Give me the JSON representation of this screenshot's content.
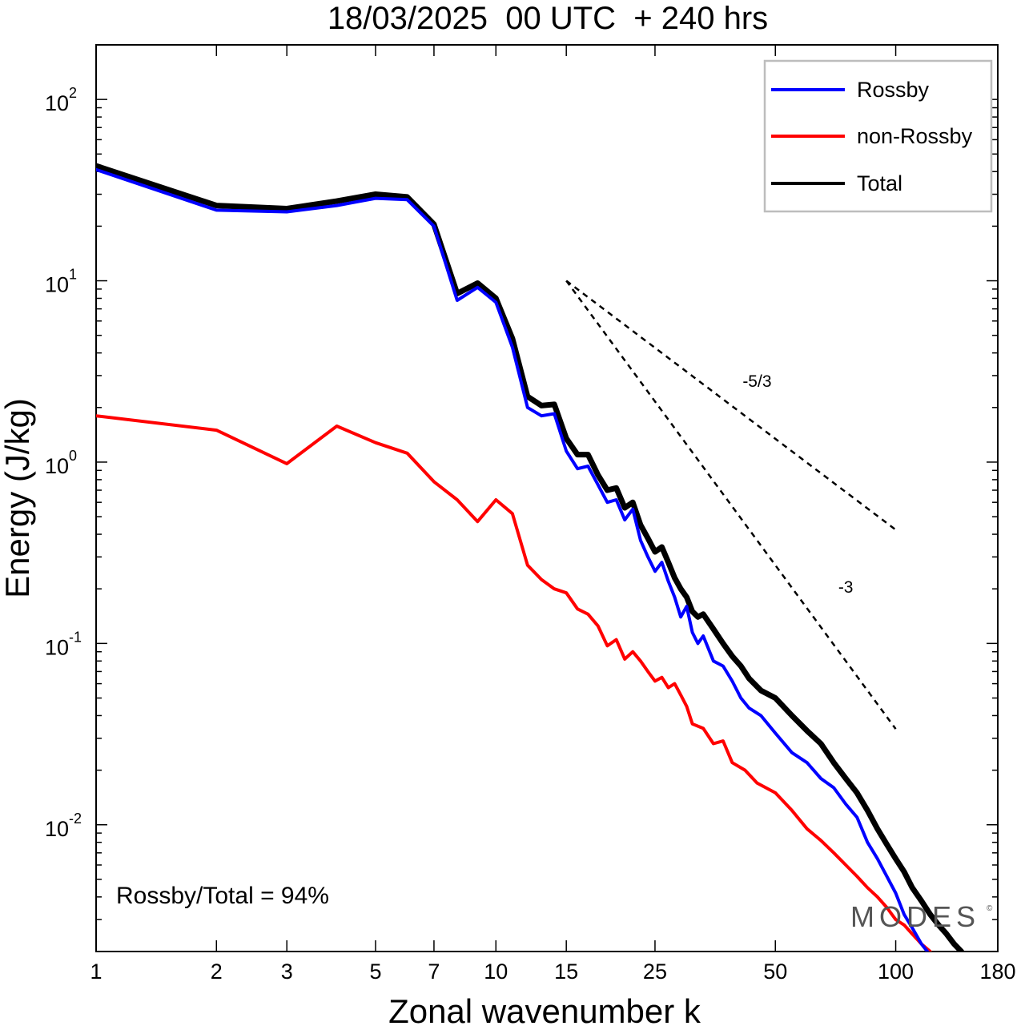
{
  "chart_data": {
    "type": "line",
    "title": "18/03/2025  00 UTC  + 240 hrs",
    "xlabel": "Zonal wavenumber k",
    "ylabel": "Energy (J/kg)",
    "xscale": "log",
    "yscale": "log",
    "xlim": [
      1,
      180
    ],
    "ylim": [
      0.002,
      200
    ],
    "x_ticks": [
      {
        "value": 1,
        "label": "1"
      },
      {
        "value": 2,
        "label": "2"
      },
      {
        "value": 3,
        "label": "3"
      },
      {
        "value": 5,
        "label": "5"
      },
      {
        "value": 7,
        "label": "7"
      },
      {
        "value": 10,
        "label": "10"
      },
      {
        "value": 15,
        "label": "15"
      },
      {
        "value": 25,
        "label": "25"
      },
      {
        "value": 50,
        "label": "50"
      },
      {
        "value": 100,
        "label": "100"
      },
      {
        "value": 180,
        "label": "180"
      }
    ],
    "y_ticks": [
      {
        "value": 100,
        "base": "10",
        "exp": "2"
      },
      {
        "value": 10,
        "base": "10",
        "exp": "1"
      },
      {
        "value": 1,
        "base": "10",
        "exp": "0"
      },
      {
        "value": 0.1,
        "base": "10",
        "exp": "-1"
      },
      {
        "value": 0.01,
        "base": "10",
        "exp": "-2"
      }
    ],
    "legend_position": "top-right",
    "series": [
      {
        "name": "Rossby",
        "color": "#0000ff",
        "points": [
          [
            1,
            41
          ],
          [
            2,
            24.5
          ],
          [
            3,
            24
          ],
          [
            4,
            26
          ],
          [
            5,
            28.5
          ],
          [
            6,
            28
          ],
          [
            7,
            20
          ],
          [
            8,
            7.8
          ],
          [
            9,
            9.2
          ],
          [
            10,
            7.6
          ],
          [
            11,
            4.3
          ],
          [
            12,
            2.0
          ],
          [
            13,
            1.8
          ],
          [
            14,
            1.85
          ],
          [
            15,
            1.15
          ],
          [
            16,
            0.92
          ],
          [
            17,
            0.95
          ],
          [
            18,
            0.75
          ],
          [
            19,
            0.6
          ],
          [
            20,
            0.62
          ],
          [
            21,
            0.48
          ],
          [
            22,
            0.55
          ],
          [
            23,
            0.37
          ],
          [
            24,
            0.3
          ],
          [
            25,
            0.25
          ],
          [
            26,
            0.28
          ],
          [
            27,
            0.22
          ],
          [
            28,
            0.18
          ],
          [
            29,
            0.14
          ],
          [
            30,
            0.16
          ],
          [
            31,
            0.115
          ],
          [
            32,
            0.1
          ],
          [
            33,
            0.11
          ],
          [
            35,
            0.08
          ],
          [
            37,
            0.075
          ],
          [
            39,
            0.062
          ],
          [
            41,
            0.05
          ],
          [
            43,
            0.044
          ],
          [
            46,
            0.04
          ],
          [
            50,
            0.032
          ],
          [
            55,
            0.025
          ],
          [
            60,
            0.022
          ],
          [
            65,
            0.018
          ],
          [
            70,
            0.016
          ],
          [
            75,
            0.013
          ],
          [
            80,
            0.011
          ],
          [
            85,
            0.008
          ],
          [
            90,
            0.0065
          ],
          [
            95,
            0.0052
          ],
          [
            100,
            0.0042
          ],
          [
            105,
            0.0032
          ],
          [
            110,
            0.0027
          ],
          [
            116,
            0.0022
          ],
          [
            120,
            0.002
          ]
        ]
      },
      {
        "name": "non-Rossby",
        "color": "#ff0000",
        "points": [
          [
            1,
            1.8
          ],
          [
            2,
            1.5
          ],
          [
            3,
            0.98
          ],
          [
            4,
            1.58
          ],
          [
            5,
            1.28
          ],
          [
            6,
            1.12
          ],
          [
            7,
            0.78
          ],
          [
            8,
            0.62
          ],
          [
            9,
            0.47
          ],
          [
            10,
            0.62
          ],
          [
            11,
            0.52
          ],
          [
            12,
            0.27
          ],
          [
            13,
            0.225
          ],
          [
            14,
            0.2
          ],
          [
            15,
            0.19
          ],
          [
            16,
            0.155
          ],
          [
            17,
            0.145
          ],
          [
            18,
            0.125
          ],
          [
            19,
            0.097
          ],
          [
            20,
            0.105
          ],
          [
            21,
            0.082
          ],
          [
            22,
            0.09
          ],
          [
            23,
            0.08
          ],
          [
            24,
            0.07
          ],
          [
            25,
            0.062
          ],
          [
            26,
            0.065
          ],
          [
            27,
            0.057
          ],
          [
            28,
            0.06
          ],
          [
            29,
            0.052
          ],
          [
            30,
            0.045
          ],
          [
            31,
            0.036
          ],
          [
            33,
            0.034
          ],
          [
            35,
            0.028
          ],
          [
            37,
            0.029
          ],
          [
            39,
            0.022
          ],
          [
            42,
            0.02
          ],
          [
            45,
            0.017
          ],
          [
            50,
            0.015
          ],
          [
            55,
            0.012
          ],
          [
            60,
            0.0095
          ],
          [
            65,
            0.0082
          ],
          [
            70,
            0.007
          ],
          [
            75,
            0.006
          ],
          [
            80,
            0.0052
          ],
          [
            85,
            0.0045
          ],
          [
            90,
            0.004
          ],
          [
            95,
            0.0035
          ],
          [
            100,
            0.003
          ],
          [
            105,
            0.0028
          ],
          [
            110,
            0.0025
          ],
          [
            116,
            0.0022
          ],
          [
            122,
            0.002
          ]
        ]
      },
      {
        "name": "Total",
        "color": "#000000",
        "points": [
          [
            1,
            43
          ],
          [
            2,
            26
          ],
          [
            3,
            25
          ],
          [
            4,
            27.5
          ],
          [
            5,
            30
          ],
          [
            6,
            29
          ],
          [
            7,
            20.5
          ],
          [
            8,
            8.5
          ],
          [
            9,
            9.7
          ],
          [
            10,
            8
          ],
          [
            11,
            4.8
          ],
          [
            12,
            2.3
          ],
          [
            13,
            2.05
          ],
          [
            14,
            2.08
          ],
          [
            15,
            1.35
          ],
          [
            16,
            1.1
          ],
          [
            17,
            1.1
          ],
          [
            18,
            0.85
          ],
          [
            19,
            0.7
          ],
          [
            20,
            0.72
          ],
          [
            21,
            0.56
          ],
          [
            22,
            0.6
          ],
          [
            23,
            0.45
          ],
          [
            24,
            0.38
          ],
          [
            25,
            0.32
          ],
          [
            26,
            0.34
          ],
          [
            27,
            0.28
          ],
          [
            28,
            0.23
          ],
          [
            29,
            0.2
          ],
          [
            30,
            0.18
          ],
          [
            31,
            0.15
          ],
          [
            32,
            0.14
          ],
          [
            33,
            0.145
          ],
          [
            35,
            0.12
          ],
          [
            37,
            0.1
          ],
          [
            39,
            0.085
          ],
          [
            41,
            0.075
          ],
          [
            43,
            0.064
          ],
          [
            46,
            0.055
          ],
          [
            50,
            0.05
          ],
          [
            55,
            0.04
          ],
          [
            60,
            0.033
          ],
          [
            65,
            0.028
          ],
          [
            70,
            0.022
          ],
          [
            75,
            0.018
          ],
          [
            80,
            0.015
          ],
          [
            85,
            0.012
          ],
          [
            90,
            0.0095
          ],
          [
            95,
            0.0078
          ],
          [
            100,
            0.0065
          ],
          [
            105,
            0.0055
          ],
          [
            110,
            0.0045
          ],
          [
            116,
            0.0038
          ],
          [
            122,
            0.0032
          ],
          [
            128,
            0.0028
          ],
          [
            134,
            0.0025
          ],
          [
            140,
            0.0022
          ],
          [
            146,
            0.002
          ]
        ]
      }
    ],
    "reference_lines": [
      {
        "label": "-5/3",
        "slope": -1.6667,
        "x_start": 15,
        "y_start": 10,
        "x_end": 100,
        "label_x": 45,
        "label_y": 2.6
      },
      {
        "label": "-3",
        "slope": -3,
        "x_start": 15,
        "y_start": 10,
        "x_end": 100,
        "label_x": 75,
        "label_y": 0.19
      }
    ],
    "annotation": "Rossby/Total = 94%",
    "logo": {
      "text": "MODES",
      "mark": "©"
    }
  }
}
